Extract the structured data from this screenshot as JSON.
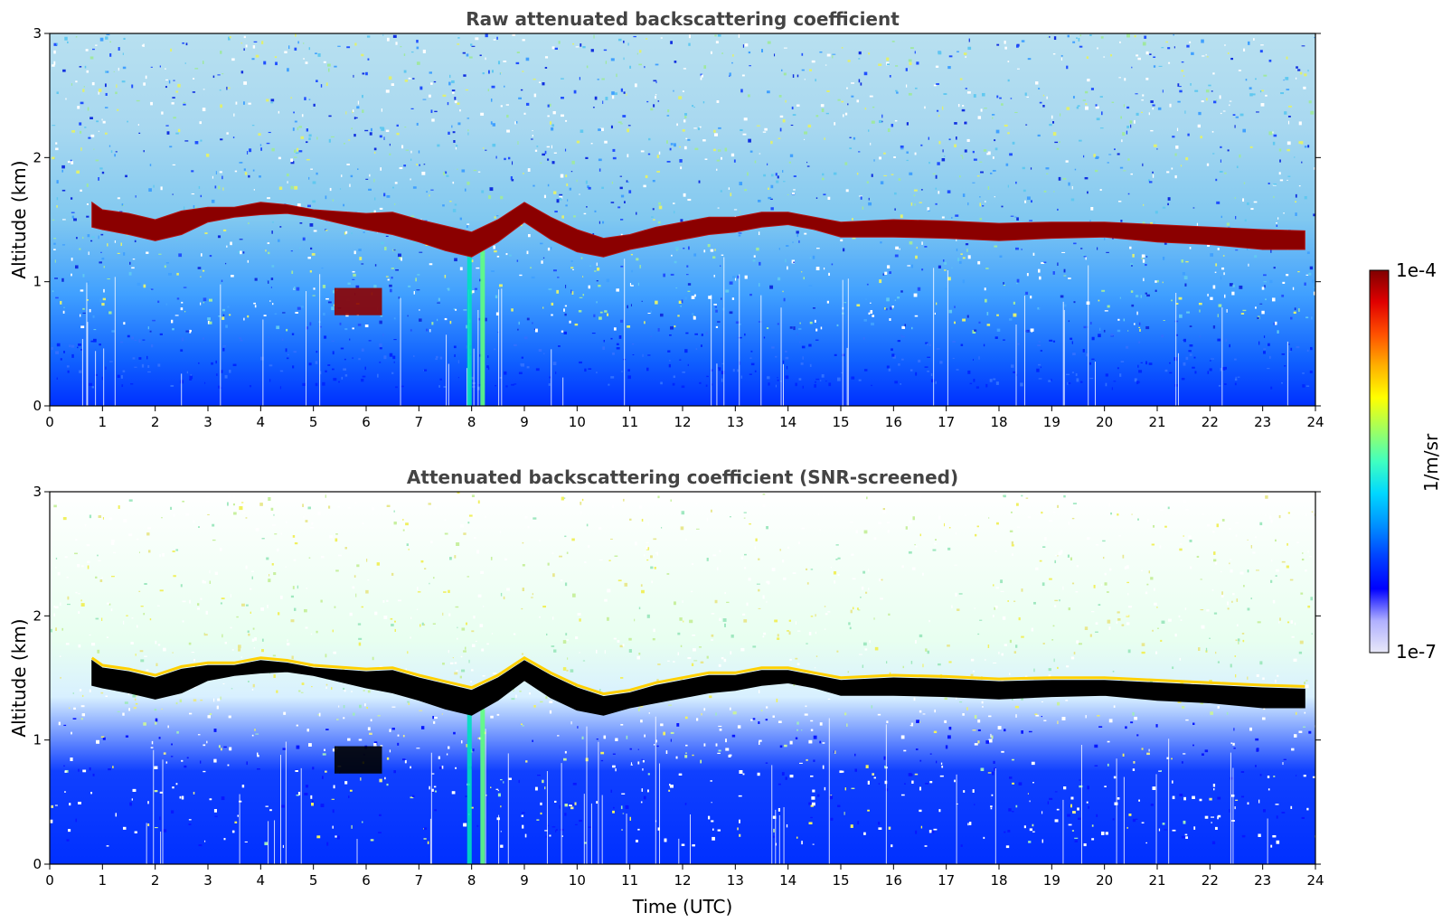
{
  "chart_data": [
    {
      "type": "heatmap",
      "title": "Raw attenuated backscattering coefficient",
      "xlabel": "",
      "ylabel": "Altitude (km)",
      "xlim": [
        0,
        24
      ],
      "ylim": [
        0,
        3
      ],
      "xticks": [
        "0",
        "1",
        "2",
        "3",
        "4",
        "5",
        "6",
        "7",
        "8",
        "9",
        "10",
        "11",
        "12",
        "13",
        "14",
        "15",
        "16",
        "17",
        "18",
        "19",
        "20",
        "21",
        "22",
        "23",
        "24"
      ],
      "yticks": [
        "0",
        "1",
        "2",
        "3"
      ],
      "screened": false,
      "layer_top_km": [
        [
          0.8,
          1.64
        ],
        [
          1.0,
          1.58
        ],
        [
          1.5,
          1.55
        ],
        [
          2.0,
          1.5
        ],
        [
          2.5,
          1.57
        ],
        [
          3.0,
          1.6
        ],
        [
          3.5,
          1.6
        ],
        [
          4.0,
          1.64
        ],
        [
          4.5,
          1.62
        ],
        [
          5.0,
          1.58
        ],
        [
          6.0,
          1.55
        ],
        [
          6.5,
          1.56
        ],
        [
          7.0,
          1.5
        ],
        [
          7.5,
          1.45
        ],
        [
          8.0,
          1.4
        ],
        [
          8.5,
          1.5
        ],
        [
          9.0,
          1.64
        ],
        [
          9.5,
          1.52
        ],
        [
          10.0,
          1.42
        ],
        [
          10.5,
          1.35
        ],
        [
          11.0,
          1.38
        ],
        [
          11.5,
          1.44
        ],
        [
          12.0,
          1.48
        ],
        [
          12.5,
          1.52
        ],
        [
          13.0,
          1.52
        ],
        [
          13.5,
          1.56
        ],
        [
          14.0,
          1.56
        ],
        [
          14.5,
          1.52
        ],
        [
          15.0,
          1.48
        ],
        [
          16.0,
          1.5
        ],
        [
          17.0,
          1.49
        ],
        [
          18.0,
          1.47
        ],
        [
          19.0,
          1.48
        ],
        [
          20.0,
          1.48
        ],
        [
          21.0,
          1.46
        ],
        [
          22.0,
          1.44
        ],
        [
          23.0,
          1.42
        ],
        [
          23.8,
          1.41
        ]
      ],
      "layer_bottom_km": [
        [
          0.8,
          1.44
        ],
        [
          1.0,
          1.42
        ],
        [
          1.5,
          1.38
        ],
        [
          2.0,
          1.33
        ],
        [
          2.5,
          1.38
        ],
        [
          3.0,
          1.48
        ],
        [
          3.5,
          1.52
        ],
        [
          4.0,
          1.54
        ],
        [
          4.5,
          1.55
        ],
        [
          5.0,
          1.52
        ],
        [
          6.0,
          1.42
        ],
        [
          6.5,
          1.38
        ],
        [
          7.0,
          1.32
        ],
        [
          7.5,
          1.25
        ],
        [
          8.0,
          1.2
        ],
        [
          8.5,
          1.32
        ],
        [
          9.0,
          1.48
        ],
        [
          9.5,
          1.34
        ],
        [
          10.0,
          1.24
        ],
        [
          10.5,
          1.2
        ],
        [
          11.0,
          1.26
        ],
        [
          11.5,
          1.3
        ],
        [
          12.0,
          1.34
        ],
        [
          12.5,
          1.38
        ],
        [
          13.0,
          1.4
        ],
        [
          13.5,
          1.44
        ],
        [
          14.0,
          1.46
        ],
        [
          14.5,
          1.42
        ],
        [
          15.0,
          1.36
        ],
        [
          16.0,
          1.36
        ],
        [
          17.0,
          1.35
        ],
        [
          18.0,
          1.33
        ],
        [
          19.0,
          1.35
        ],
        [
          20.0,
          1.36
        ],
        [
          21.0,
          1.32
        ],
        [
          22.0,
          1.3
        ],
        [
          23.0,
          1.26
        ],
        [
          23.8,
          1.26
        ]
      ],
      "low_layer": {
        "x": [
          5.4,
          6.3
        ],
        "y": [
          0.73,
          0.95
        ]
      }
    },
    {
      "type": "heatmap",
      "title": "Attenuated backscattering coefficient (SNR-screened)",
      "xlabel": "Time (UTC)",
      "ylabel": "Altitude (km)",
      "xlim": [
        0,
        24
      ],
      "ylim": [
        0,
        3
      ],
      "xticks": [
        "0",
        "1",
        "2",
        "3",
        "4",
        "5",
        "6",
        "7",
        "8",
        "9",
        "10",
        "11",
        "12",
        "13",
        "14",
        "15",
        "16",
        "17",
        "18",
        "19",
        "20",
        "21",
        "22",
        "23",
        "24"
      ],
      "yticks": [
        "0",
        "1",
        "2",
        "3"
      ],
      "screened": true,
      "layer_top_km": [
        [
          0.8,
          1.64
        ],
        [
          1.0,
          1.58
        ],
        [
          1.5,
          1.55
        ],
        [
          2.0,
          1.5
        ],
        [
          2.5,
          1.57
        ],
        [
          3.0,
          1.6
        ],
        [
          3.5,
          1.6
        ],
        [
          4.0,
          1.64
        ],
        [
          4.5,
          1.62
        ],
        [
          5.0,
          1.58
        ],
        [
          6.0,
          1.55
        ],
        [
          6.5,
          1.56
        ],
        [
          7.0,
          1.5
        ],
        [
          7.5,
          1.45
        ],
        [
          8.0,
          1.4
        ],
        [
          8.5,
          1.5
        ],
        [
          9.0,
          1.64
        ],
        [
          9.5,
          1.52
        ],
        [
          10.0,
          1.42
        ],
        [
          10.5,
          1.35
        ],
        [
          11.0,
          1.38
        ],
        [
          11.5,
          1.44
        ],
        [
          12.0,
          1.48
        ],
        [
          12.5,
          1.52
        ],
        [
          13.0,
          1.52
        ],
        [
          13.5,
          1.56
        ],
        [
          14.0,
          1.56
        ],
        [
          14.5,
          1.52
        ],
        [
          15.0,
          1.48
        ],
        [
          16.0,
          1.5
        ],
        [
          17.0,
          1.49
        ],
        [
          18.0,
          1.47
        ],
        [
          19.0,
          1.48
        ],
        [
          20.0,
          1.48
        ],
        [
          21.0,
          1.46
        ],
        [
          22.0,
          1.44
        ],
        [
          23.0,
          1.42
        ],
        [
          23.8,
          1.41
        ]
      ],
      "layer_bottom_km": [
        [
          0.8,
          1.44
        ],
        [
          1.0,
          1.42
        ],
        [
          1.5,
          1.38
        ],
        [
          2.0,
          1.33
        ],
        [
          2.5,
          1.38
        ],
        [
          3.0,
          1.48
        ],
        [
          3.5,
          1.52
        ],
        [
          4.0,
          1.54
        ],
        [
          4.5,
          1.55
        ],
        [
          5.0,
          1.52
        ],
        [
          6.0,
          1.42
        ],
        [
          6.5,
          1.38
        ],
        [
          7.0,
          1.32
        ],
        [
          7.5,
          1.25
        ],
        [
          8.0,
          1.2
        ],
        [
          8.5,
          1.32
        ],
        [
          9.0,
          1.48
        ],
        [
          9.5,
          1.34
        ],
        [
          10.0,
          1.24
        ],
        [
          10.5,
          1.2
        ],
        [
          11.0,
          1.26
        ],
        [
          11.5,
          1.3
        ],
        [
          12.0,
          1.34
        ],
        [
          12.5,
          1.38
        ],
        [
          13.0,
          1.4
        ],
        [
          13.5,
          1.44
        ],
        [
          14.0,
          1.46
        ],
        [
          14.5,
          1.42
        ],
        [
          15.0,
          1.36
        ],
        [
          16.0,
          1.36
        ],
        [
          17.0,
          1.35
        ],
        [
          18.0,
          1.33
        ],
        [
          19.0,
          1.35
        ],
        [
          20.0,
          1.36
        ],
        [
          21.0,
          1.32
        ],
        [
          22.0,
          1.3
        ],
        [
          23.0,
          1.26
        ],
        [
          23.8,
          1.26
        ]
      ],
      "low_layer": {
        "x": [
          5.4,
          6.3
        ],
        "y": [
          0.73,
          0.95
        ]
      }
    }
  ],
  "colorbar": {
    "label": "1/m/sr",
    "max_label": "1e-4",
    "min_label": "1e-7",
    "range": [
      1e-07,
      0.0001
    ],
    "scale": "log",
    "colormap": [
      "#e8e8f8",
      "#b0b0ff",
      "#0000ff",
      "#0040ff",
      "#0090ff",
      "#00d8ff",
      "#40ffc0",
      "#a0ff60",
      "#ffff00",
      "#ffb000",
      "#ff5000",
      "#e00000",
      "#800000"
    ]
  },
  "colors": {
    "layer_raw": "#8b0000",
    "layer_screened": "#000000",
    "background_sky": "#9ad0e8",
    "near_surface": "#0000ff"
  }
}
